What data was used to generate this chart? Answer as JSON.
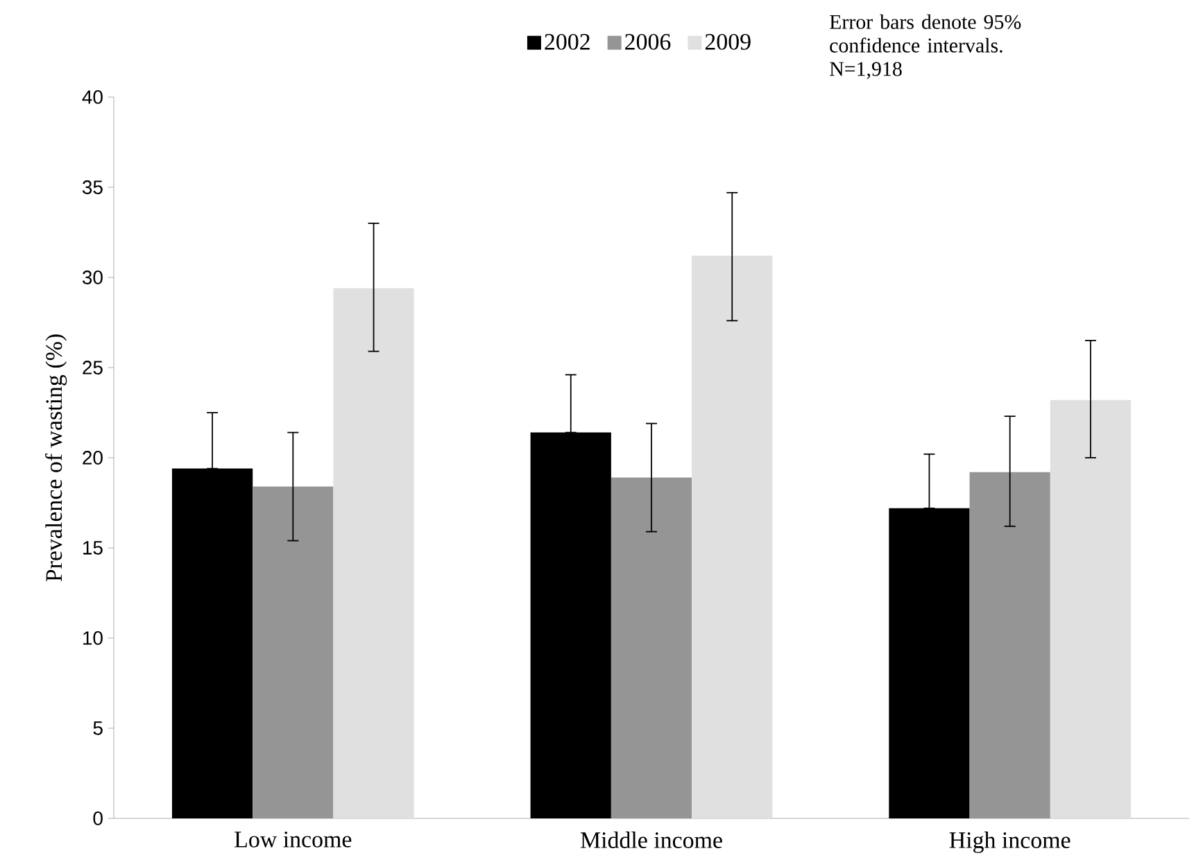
{
  "chart_data": {
    "type": "bar",
    "ylabel": "Prevalence of wasting (%)",
    "categories": [
      "Low income",
      "Middle income",
      "High income"
    ],
    "series": [
      {
        "name": "2002",
        "color": "#000000",
        "values": [
          19.4,
          21.4,
          17.2
        ],
        "errors": [
          [
            19.4,
            22.5
          ],
          [
            21.4,
            24.6
          ],
          [
            17.2,
            20.2
          ]
        ]
      },
      {
        "name": "2006",
        "color": "#959595",
        "values": [
          18.4,
          18.9,
          19.2
        ],
        "errors": [
          [
            15.4,
            21.4
          ],
          [
            15.9,
            21.9
          ],
          [
            16.2,
            22.3
          ]
        ]
      },
      {
        "name": "2009",
        "color": "#e0e0e0",
        "values": [
          29.4,
          31.2,
          23.2
        ],
        "errors": [
          [
            25.9,
            33.0
          ],
          [
            27.6,
            34.7
          ],
          [
            20.0,
            26.5
          ]
        ]
      }
    ],
    "ylim": [
      0,
      40
    ],
    "yticks": [
      0,
      5,
      10,
      15,
      20,
      25,
      30,
      35,
      40
    ],
    "legend": "top",
    "grid": false,
    "annotations": [
      "Error bars denote 95% confidence intervals. N=1,918"
    ]
  }
}
